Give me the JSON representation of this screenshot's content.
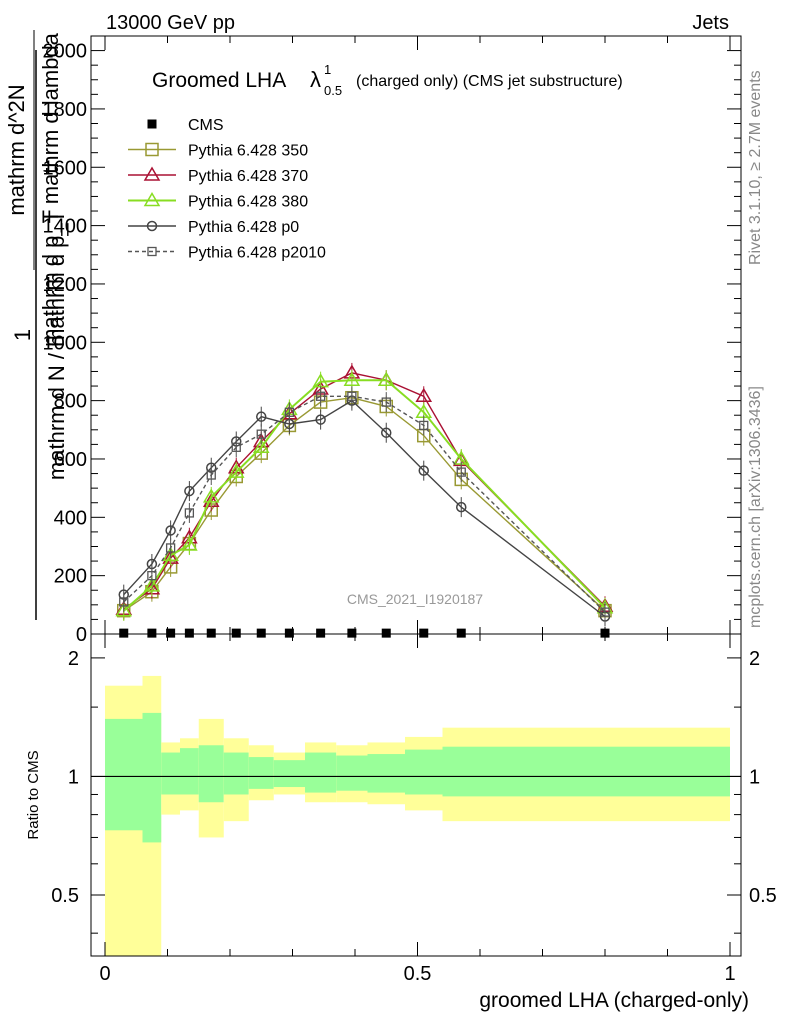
{
  "header": {
    "left": "13000 GeV pp",
    "right": "Jets",
    "side_rivet": "Rivet 3.1.10, ≥ 2.7M events",
    "side_mcplots": "mcplots.cern.ch [arXiv:1306.3436]",
    "watermark": "CMS_2021_I1920187"
  },
  "chart_data": [
    {
      "type": "line",
      "title_main": "Groomed LHA",
      "title_lambda": "λ",
      "title_sup": "1",
      "title_sub": "0.5",
      "title_rest": "(charged only) (CMS jet substructure)",
      "ylabel_numerator": "1",
      "ylabel_denominator": "mathrm d N / mathrm d p_T",
      "ylabel_right": "mathrm d^2N",
      "ylabel_right_den": "mathrm d p_T mathrm d lambda",
      "xlabel": "groomed LHA (charged-only)",
      "xlim": [
        0,
        1
      ],
      "ylim": [
        0,
        2050
      ],
      "yticks": [
        0,
        200,
        400,
        600,
        800,
        1000,
        1200,
        1400,
        1600,
        1800,
        2000
      ],
      "ytick_labels": [
        "0",
        "200",
        "400",
        "600",
        "800",
        "1000",
        "1200",
        "1400",
        "1600",
        "1800",
        "2000"
      ],
      "series": [
        {
          "name": "CMS",
          "color": "#000000",
          "marker": "square-filled",
          "dash": "none",
          "x": [
            0.03,
            0.075,
            0.105,
            0.135,
            0.17,
            0.21,
            0.25,
            0.295,
            0.345,
            0.395,
            0.45,
            0.51,
            0.57,
            0.8
          ],
          "y": [
            3,
            3,
            3,
            3,
            3,
            3,
            3,
            3,
            3,
            3,
            3,
            3,
            3,
            3
          ]
        },
        {
          "name": "Pythia 6.428 350",
          "color": "#999933",
          "marker": "square-open",
          "dash": "none",
          "x": [
            0.03,
            0.075,
            0.105,
            0.135,
            0.17,
            0.21,
            0.25,
            0.295,
            0.345,
            0.395,
            0.45,
            0.51,
            0.57,
            0.8
          ],
          "y": [
            80,
            145,
            230,
            310,
            425,
            540,
            620,
            715,
            795,
            810,
            780,
            680,
            530,
            80
          ]
        },
        {
          "name": "Pythia 6.428 370",
          "color": "#aa1133",
          "marker": "triangle-open",
          "dash": "none",
          "x": [
            0.03,
            0.075,
            0.105,
            0.135,
            0.17,
            0.21,
            0.25,
            0.295,
            0.345,
            0.395,
            0.45,
            0.51,
            0.57,
            0.8
          ],
          "y": [
            85,
            155,
            260,
            330,
            455,
            570,
            660,
            755,
            840,
            895,
            870,
            815,
            595,
            95
          ]
        },
        {
          "name": "Pythia 6.428 380",
          "color": "#88dd22",
          "marker": "triangle-open",
          "dash": "none",
          "x": [
            0.03,
            0.075,
            0.105,
            0.135,
            0.17,
            0.21,
            0.25,
            0.295,
            0.345,
            0.395,
            0.45,
            0.51,
            0.57,
            0.8
          ],
          "y": [
            80,
            165,
            270,
            305,
            470,
            555,
            640,
            770,
            865,
            870,
            870,
            760,
            600,
            90
          ]
        },
        {
          "name": "Pythia 6.428 p0",
          "color": "#444444",
          "marker": "circle-open",
          "dash": "none",
          "x": [
            0.03,
            0.075,
            0.105,
            0.135,
            0.17,
            0.21,
            0.25,
            0.295,
            0.345,
            0.395,
            0.45,
            0.51,
            0.57,
            0.8
          ],
          "y": [
            135,
            240,
            355,
            490,
            570,
            660,
            745,
            720,
            735,
            800,
            690,
            560,
            435,
            60
          ]
        },
        {
          "name": "Pythia 6.428 p2010",
          "color": "#555555",
          "marker": "square-open-small",
          "dash": "4,3",
          "x": [
            0.03,
            0.075,
            0.105,
            0.135,
            0.17,
            0.21,
            0.25,
            0.295,
            0.345,
            0.395,
            0.45,
            0.51,
            0.57,
            0.8
          ],
          "y": [
            110,
            200,
            295,
            415,
            545,
            640,
            685,
            760,
            815,
            815,
            795,
            715,
            555,
            75
          ]
        }
      ]
    },
    {
      "type": "area",
      "ylabel": "Ratio to CMS",
      "xlabel": "groomed LHA (charged-only)",
      "xlim": [
        0,
        1
      ],
      "ylim": [
        0.35,
        2.3
      ],
      "scale": "log",
      "yticks": [
        0.5,
        1,
        2
      ],
      "ytick_labels": [
        "0.5",
        "1",
        "2"
      ],
      "xticks": [
        0,
        0.5,
        1
      ],
      "xtick_labels": [
        "0",
        "0.5",
        "1"
      ],
      "reference_line": 1,
      "bins_edges": [
        0,
        0.06,
        0.09,
        0.12,
        0.15,
        0.19,
        0.23,
        0.27,
        0.32,
        0.37,
        0.42,
        0.48,
        0.54,
        0.6,
        1.0
      ],
      "band_yellow": [
        [
          0.2,
          1.7
        ],
        [
          0.2,
          1.8
        ],
        [
          0.8,
          1.22
        ],
        [
          0.82,
          1.25
        ],
        [
          0.7,
          1.4
        ],
        [
          0.77,
          1.25
        ],
        [
          0.87,
          1.2
        ],
        [
          0.9,
          1.15
        ],
        [
          0.86,
          1.22
        ],
        [
          0.86,
          1.2
        ],
        [
          0.85,
          1.22
        ],
        [
          0.82,
          1.26
        ],
        [
          0.77,
          1.33
        ],
        [
          0.77,
          1.33
        ]
      ],
      "band_green": [
        [
          0.73,
          1.4
        ],
        [
          0.68,
          1.45
        ],
        [
          0.9,
          1.15
        ],
        [
          0.9,
          1.18
        ],
        [
          0.86,
          1.2
        ],
        [
          0.9,
          1.15
        ],
        [
          0.93,
          1.12
        ],
        [
          0.94,
          1.1
        ],
        [
          0.91,
          1.15
        ],
        [
          0.92,
          1.13
        ],
        [
          0.91,
          1.14
        ],
        [
          0.9,
          1.17
        ],
        [
          0.89,
          1.19
        ],
        [
          0.89,
          1.19
        ]
      ],
      "band_colors": {
        "yellow": "#ffff99",
        "green": "#99ff99"
      }
    }
  ]
}
